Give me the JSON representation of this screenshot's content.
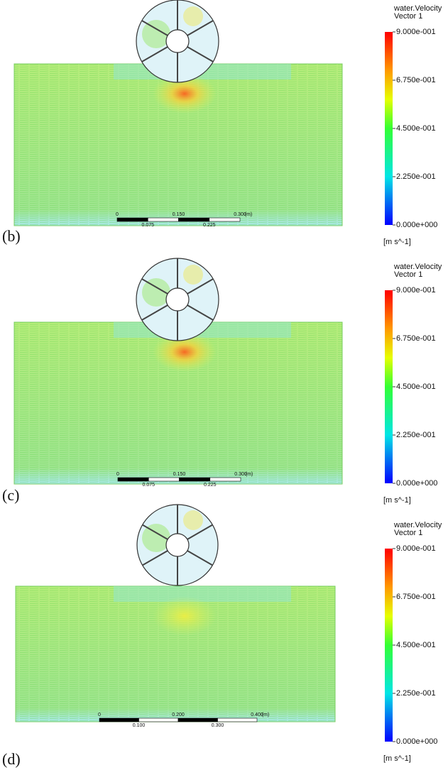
{
  "panels": [
    {
      "label": "(b)",
      "legend": {
        "title": "water.Velocity",
        "subtitle": "Vector 1",
        "ticks": [
          "9.000e-001",
          "6.750e-001",
          "4.500e-001",
          "2.250e-001",
          "0.000e+000"
        ],
        "unit": "[m s^-1]"
      },
      "scale_bar": {
        "top": [
          "0",
          "0.150",
          "0.300",
          "(m)"
        ],
        "bottom": [
          "0.075",
          "0.225"
        ]
      }
    },
    {
      "label": "(c)",
      "legend": {
        "title": "water.Velocity",
        "subtitle": "Vector 1",
        "ticks": [
          "9.000e-001",
          "6.750e-001",
          "4.500e-001",
          "2.250e-001",
          "0.000e+000"
        ],
        "unit": "[m s^-1]"
      },
      "scale_bar": {
        "top": [
          "0",
          "0.150",
          "0.300",
          "(m)"
        ],
        "bottom": [
          "0.075",
          "0.225"
        ]
      }
    },
    {
      "label": "(d)",
      "legend": {
        "title": "water.Velocity",
        "subtitle": "Vector 1",
        "ticks": [
          "9.000e-001",
          "6.750e-001",
          "4.500e-001",
          "2.250e-001",
          "0.000e+000"
        ],
        "unit": "[m s^-1]"
      },
      "scale_bar": {
        "top": [
          "0",
          "0.200",
          "0.400",
          "(m)"
        ],
        "bottom": [
          "0.100",
          "0.300"
        ]
      }
    }
  ]
}
